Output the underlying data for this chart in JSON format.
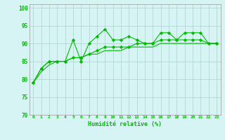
{
  "title": "",
  "xlabel": "Humidité relative (%)",
  "ylabel": "",
  "bg_color": "#d7f4f4",
  "grid_color": "#b0d8d0",
  "line_color": "#00bb00",
  "xlim": [
    -0.5,
    23.5
  ],
  "ylim": [
    70,
    101
  ],
  "yticks": [
    70,
    75,
    80,
    85,
    90,
    95,
    100
  ],
  "xticks": [
    0,
    1,
    2,
    3,
    4,
    5,
    6,
    7,
    8,
    9,
    10,
    11,
    12,
    13,
    14,
    15,
    16,
    17,
    18,
    19,
    20,
    21,
    22,
    23
  ],
  "series": [
    [
      79,
      83,
      85,
      85,
      85,
      91,
      85,
      90,
      92,
      94,
      91,
      91,
      92,
      91,
      90,
      90,
      93,
      93,
      91,
      93,
      93,
      93,
      90,
      90
    ],
    [
      79,
      83,
      85,
      85,
      85,
      86,
      86,
      87,
      88,
      89,
      89,
      89,
      89,
      90,
      90,
      90,
      91,
      91,
      91,
      91,
      91,
      91,
      90,
      90
    ],
    [
      79,
      82,
      84,
      85,
      85,
      86,
      86,
      87,
      87,
      88,
      88,
      88,
      89,
      89,
      89,
      89,
      90,
      90,
      90,
      90,
      90,
      90,
      90,
      90
    ]
  ]
}
